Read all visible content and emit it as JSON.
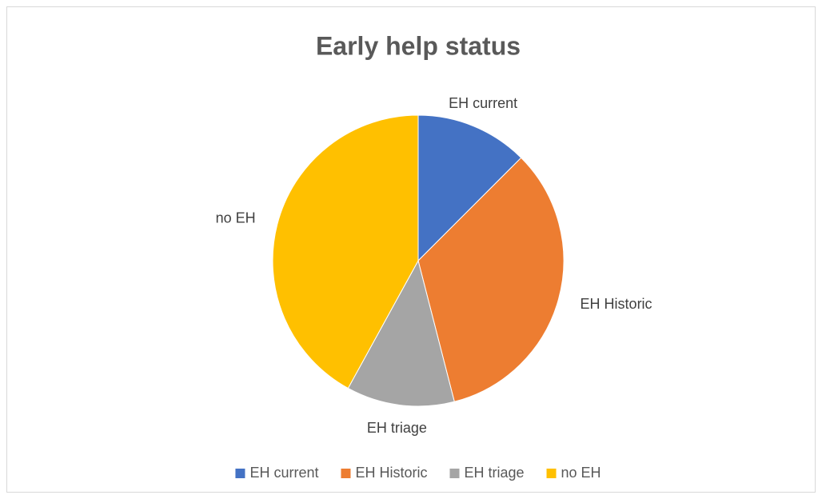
{
  "chart_data": {
    "type": "pie",
    "title": "Early help status",
    "categories": [
      "EH current",
      "EH Historic",
      "EH triage",
      "no EH"
    ],
    "values": [
      12.5,
      33.5,
      12,
      42
    ],
    "colors": [
      "#4472c4",
      "#ed7d31",
      "#a5a5a5",
      "#ffc000"
    ],
    "legend": "bottom"
  }
}
